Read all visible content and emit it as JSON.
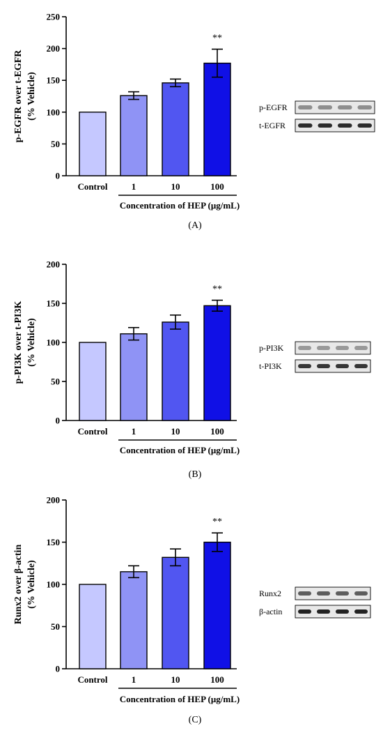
{
  "figure": {
    "x_title": "Concentration of HEP (μg/mL)"
  },
  "chart_data": [
    {
      "type": "bar",
      "panel_label": "(A)",
      "ylabel": [
        "p-EGFR over t-EGFR",
        "(% Vehicle)"
      ],
      "categories": [
        "Control",
        "1",
        "10",
        "100"
      ],
      "values": [
        100,
        126,
        146,
        177
      ],
      "errors": [
        0,
        6,
        6,
        22
      ],
      "significance": [
        "",
        "",
        "",
        "**"
      ],
      "ylim": [
        0,
        250
      ],
      "yticks": [
        0,
        50,
        100,
        150,
        200,
        250
      ],
      "bar_colors": [
        "#c5c8ff",
        "#8f93f5",
        "#5156f1",
        "#1010e6"
      ],
      "blot": {
        "rows": [
          {
            "label": "p-EGFR",
            "intensity": 0.45
          },
          {
            "label": "t-EGFR",
            "intensity": 0.95
          }
        ]
      }
    },
    {
      "type": "bar",
      "panel_label": "(B)",
      "ylabel": [
        "p-PI3K over t-PI3K",
        "(% Vehicle)"
      ],
      "categories": [
        "Control",
        "1",
        "10",
        "100"
      ],
      "values": [
        100,
        111,
        126,
        147
      ],
      "errors": [
        0,
        8,
        9,
        7
      ],
      "significance": [
        "",
        "",
        "",
        "**"
      ],
      "ylim": [
        0,
        200
      ],
      "yticks": [
        0,
        50,
        100,
        150,
        200
      ],
      "bar_colors": [
        "#c5c8ff",
        "#8f93f5",
        "#5156f1",
        "#1010e6"
      ],
      "blot": {
        "rows": [
          {
            "label": "p-PI3K",
            "intensity": 0.4
          },
          {
            "label": "t-PI3K",
            "intensity": 0.9
          }
        ]
      }
    },
    {
      "type": "bar",
      "panel_label": "(C)",
      "ylabel": [
        "Runx2 over β-actin",
        "(% Vehicle)"
      ],
      "categories": [
        "Control",
        "1",
        "10",
        "100"
      ],
      "values": [
        100,
        115,
        132,
        150
      ],
      "errors": [
        0,
        7,
        10,
        11
      ],
      "significance": [
        "",
        "",
        "",
        "**"
      ],
      "ylim": [
        0,
        200
      ],
      "yticks": [
        0,
        50,
        100,
        150,
        200
      ],
      "bar_colors": [
        "#c5c8ff",
        "#8f93f5",
        "#5156f1",
        "#1010e6"
      ],
      "blot": {
        "rows": [
          {
            "label": "Runx2",
            "intensity": 0.7
          },
          {
            "label": "β-actin",
            "intensity": 1.0
          }
        ]
      }
    }
  ]
}
